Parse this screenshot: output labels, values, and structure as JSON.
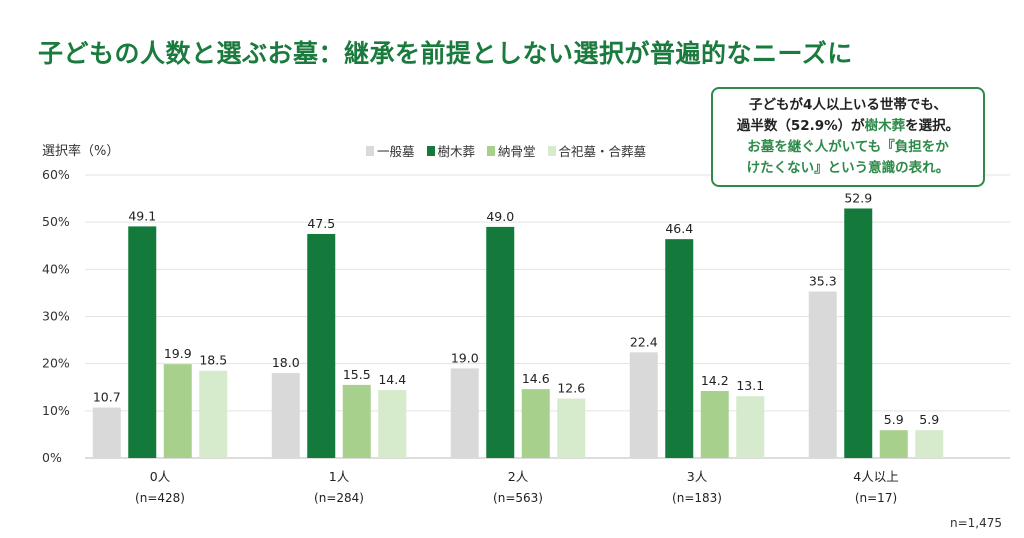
{
  "title": "子どもの人数と選ぶお墓：継承を前提としない選択が普遍的なニーズに",
  "callout": {
    "line1": "子どもが4人以上いる世帯でも、",
    "line2_pre": "過半数（52.9%）が",
    "line2_em": "樹木葬",
    "line2_post": "を選択。",
    "line3": "お墓を継ぐ人がいても『負担をか",
    "line4": "けたくない』という意識の表れ。"
  },
  "total_n": "n=1,475",
  "colors": {
    "title": "#1b7a3d",
    "一般墓": "#d9d9d9",
    "樹木葬": "#137a3b",
    "納骨堂": "#a8d08d",
    "合祀墓・合葬墓": "#d6ebcb"
  },
  "chart_data": {
    "type": "bar",
    "title": "子どもの人数と選ぶお墓：継承を前提としない選択が普遍的なニーズに",
    "ylabel": "選択率（%）",
    "xlabel": "",
    "ylim": [
      0,
      60
    ],
    "yticks": [
      "0%",
      "10%",
      "20%",
      "30%",
      "40%",
      "50%",
      "60%"
    ],
    "grid": true,
    "legend_position": "top",
    "categories": [
      "0人",
      "1人",
      "2人",
      "3人",
      "4人以上"
    ],
    "category_n": [
      "(n=428)",
      "(n=284)",
      "(n=563)",
      "(n=183)",
      "(n=17)"
    ],
    "series": [
      {
        "name": "一般墓",
        "color": "#d9d9d9",
        "values": [
          10.7,
          18.0,
          19.0,
          22.4,
          35.3
        ]
      },
      {
        "name": "樹木葬",
        "color": "#137a3b",
        "values": [
          49.1,
          47.5,
          49.0,
          46.4,
          52.9
        ]
      },
      {
        "name": "納骨堂",
        "color": "#a8d08d",
        "values": [
          19.9,
          15.5,
          14.6,
          14.2,
          5.9
        ]
      },
      {
        "name": "合祀墓・合葬墓",
        "color": "#d6ebcb",
        "values": [
          18.5,
          14.4,
          12.6,
          13.1,
          5.9
        ]
      }
    ]
  }
}
